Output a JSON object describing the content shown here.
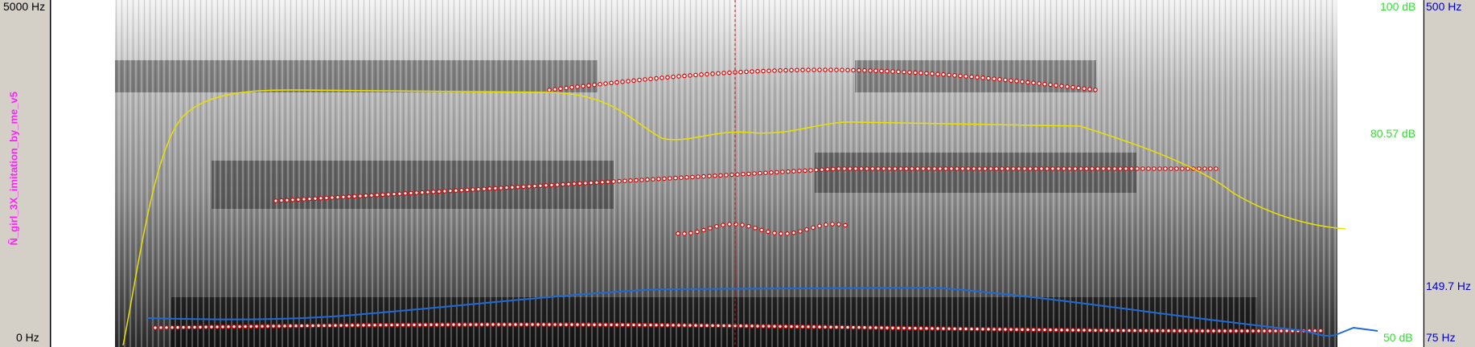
{
  "left_axis": {
    "top_label": "5000 Hz",
    "bottom_label": "0 Hz"
  },
  "right_axis": {
    "top_label": "500 Hz",
    "pitch_mid_label": "149.7 Hz",
    "bottom_label": "75 Hz"
  },
  "intensity_axis": {
    "top_label": "100 dB",
    "mid_label": "80.57 dB",
    "bottom_label": "50 dB"
  },
  "file_label": "Ñ_girl_3X_imitation_by_me_v5",
  "colors": {
    "pitch": "#1e6bd6",
    "intensity": "#e8e000",
    "formant": "#dd0000",
    "cursor": "#c02020"
  }
}
